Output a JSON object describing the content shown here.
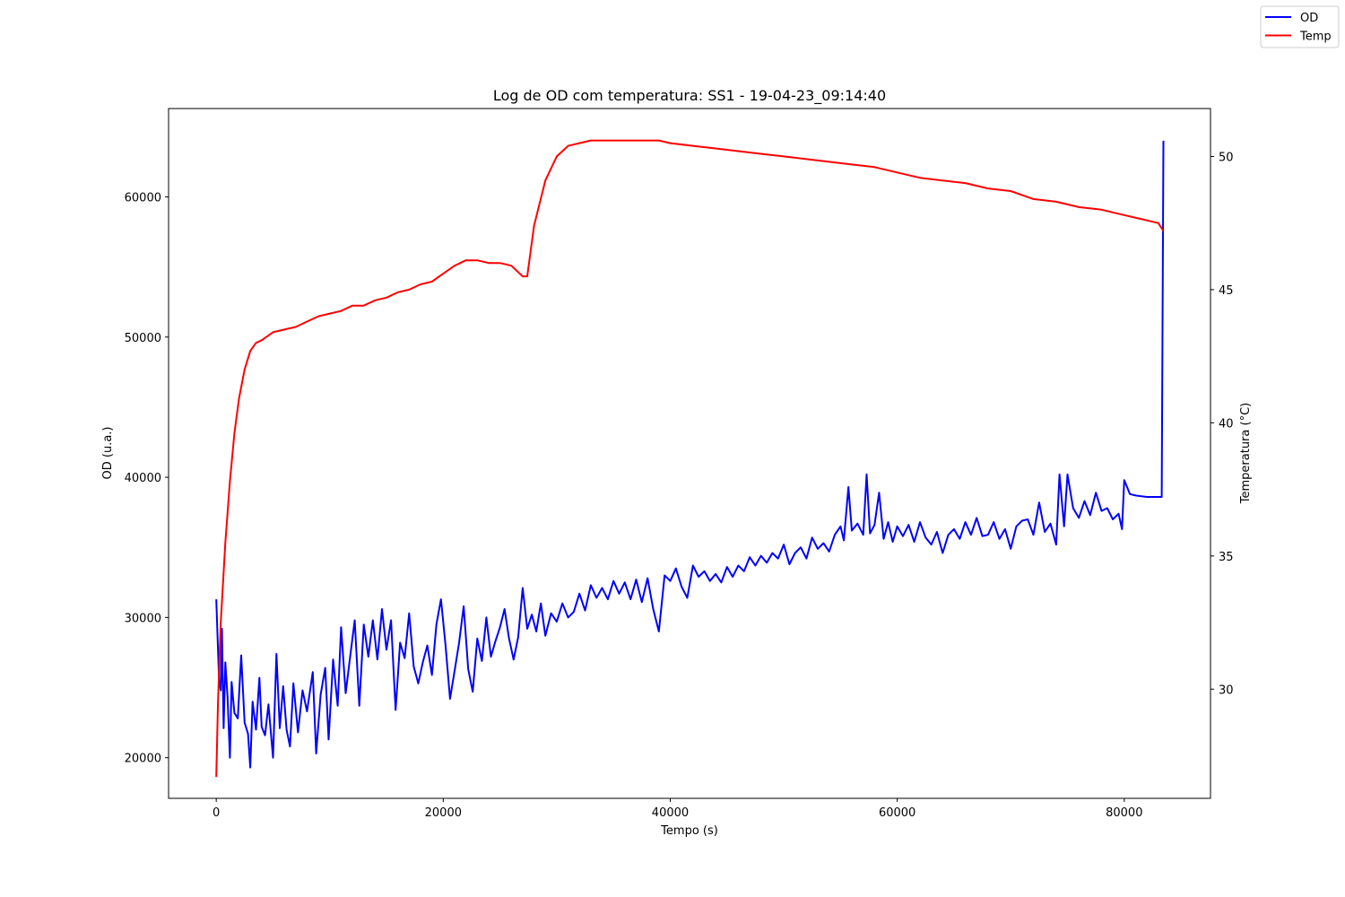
{
  "chart_data": {
    "type": "line",
    "title": "Log de OD com temperatura: SS1 - 19-04-23_09:14:40",
    "xlabel": "Tempo (s)",
    "ylabel": "OD (u.a.)",
    "ylabel_right": "Temperatura (°C)",
    "xlim": [
      -4200,
      87600
    ],
    "ylim": [
      17100,
      66300
    ],
    "ylim_right": [
      25.9,
      51.8
    ],
    "x_ticks": [
      0,
      20000,
      40000,
      60000,
      80000
    ],
    "y_ticks": [
      20000,
      30000,
      40000,
      50000,
      60000
    ],
    "y_ticks_right": [
      30,
      35,
      40,
      45,
      50
    ],
    "grid": false,
    "legend": {
      "placement": "top-right (outside axes)",
      "entries": [
        "OD",
        "Temp"
      ]
    },
    "series": [
      {
        "name": "OD",
        "axis": "left",
        "color": "#0000ff",
        "points": [
          [
            0,
            31300
          ],
          [
            250,
            25500
          ],
          [
            400,
            24800
          ],
          [
            500,
            29200
          ],
          [
            650,
            22100
          ],
          [
            800,
            26800
          ],
          [
            1000,
            24300
          ],
          [
            1200,
            20000
          ],
          [
            1350,
            25400
          ],
          [
            1600,
            23200
          ],
          [
            1900,
            22800
          ],
          [
            2200,
            27300
          ],
          [
            2500,
            22500
          ],
          [
            2800,
            21700
          ],
          [
            3000,
            19300
          ],
          [
            3200,
            24000
          ],
          [
            3500,
            22000
          ],
          [
            3800,
            25700
          ],
          [
            4000,
            22200
          ],
          [
            4300,
            21600
          ],
          [
            4600,
            23800
          ],
          [
            5000,
            20000
          ],
          [
            5300,
            27400
          ],
          [
            5600,
            22100
          ],
          [
            5900,
            25100
          ],
          [
            6200,
            22000
          ],
          [
            6500,
            20800
          ],
          [
            6800,
            25300
          ],
          [
            7200,
            21800
          ],
          [
            7600,
            24800
          ],
          [
            8000,
            23300
          ],
          [
            8500,
            26100
          ],
          [
            8800,
            20300
          ],
          [
            9200,
            24500
          ],
          [
            9600,
            26400
          ],
          [
            9900,
            21300
          ],
          [
            10300,
            27000
          ],
          [
            10700,
            23700
          ],
          [
            11000,
            29300
          ],
          [
            11400,
            24600
          ],
          [
            11800,
            27200
          ],
          [
            12200,
            29800
          ],
          [
            12600,
            23700
          ],
          [
            13000,
            29500
          ],
          [
            13400,
            27200
          ],
          [
            13800,
            29800
          ],
          [
            14200,
            27000
          ],
          [
            14600,
            30600
          ],
          [
            15000,
            27700
          ],
          [
            15400,
            29800
          ],
          [
            15800,
            23400
          ],
          [
            16200,
            28200
          ],
          [
            16600,
            27100
          ],
          [
            17000,
            30300
          ],
          [
            17400,
            26500
          ],
          [
            17800,
            25300
          ],
          [
            18200,
            26800
          ],
          [
            18600,
            28000
          ],
          [
            19000,
            25900
          ],
          [
            19400,
            29500
          ],
          [
            19800,
            31300
          ],
          [
            20200,
            28000
          ],
          [
            20600,
            24200
          ],
          [
            21000,
            26200
          ],
          [
            21400,
            28200
          ],
          [
            21800,
            30800
          ],
          [
            22200,
            26300
          ],
          [
            22600,
            24700
          ],
          [
            23000,
            28500
          ],
          [
            23400,
            26900
          ],
          [
            23800,
            30000
          ],
          [
            24200,
            27200
          ],
          [
            24600,
            28300
          ],
          [
            25000,
            29300
          ],
          [
            25400,
            30600
          ],
          [
            25800,
            28500
          ],
          [
            26200,
            27000
          ],
          [
            26600,
            28600
          ],
          [
            27000,
            32100
          ],
          [
            27400,
            29200
          ],
          [
            27800,
            30200
          ],
          [
            28200,
            29000
          ],
          [
            28600,
            31000
          ],
          [
            29000,
            28700
          ],
          [
            29500,
            30300
          ],
          [
            30000,
            29700
          ],
          [
            30500,
            31000
          ],
          [
            31000,
            30000
          ],
          [
            31500,
            30400
          ],
          [
            32000,
            31700
          ],
          [
            32500,
            30500
          ],
          [
            33000,
            32300
          ],
          [
            33500,
            31400
          ],
          [
            34000,
            32100
          ],
          [
            34500,
            31300
          ],
          [
            35000,
            32600
          ],
          [
            35500,
            31700
          ],
          [
            36000,
            32500
          ],
          [
            36500,
            31300
          ],
          [
            37000,
            32700
          ],
          [
            37500,
            31100
          ],
          [
            38000,
            32800
          ],
          [
            38500,
            30600
          ],
          [
            39000,
            29000
          ],
          [
            39500,
            33000
          ],
          [
            40000,
            32600
          ],
          [
            40500,
            33500
          ],
          [
            41000,
            32200
          ],
          [
            41500,
            31400
          ],
          [
            42000,
            33700
          ],
          [
            42500,
            32900
          ],
          [
            43000,
            33300
          ],
          [
            43500,
            32600
          ],
          [
            44000,
            33100
          ],
          [
            44500,
            32500
          ],
          [
            45000,
            33600
          ],
          [
            45500,
            32900
          ],
          [
            46000,
            33700
          ],
          [
            46500,
            33300
          ],
          [
            47000,
            34300
          ],
          [
            47500,
            33700
          ],
          [
            48000,
            34400
          ],
          [
            48500,
            33900
          ],
          [
            49000,
            34600
          ],
          [
            49500,
            34200
          ],
          [
            50000,
            35200
          ],
          [
            50500,
            33800
          ],
          [
            51000,
            34600
          ],
          [
            51500,
            35000
          ],
          [
            52000,
            34200
          ],
          [
            52500,
            35700
          ],
          [
            53000,
            34900
          ],
          [
            53500,
            35300
          ],
          [
            54000,
            34700
          ],
          [
            54500,
            35900
          ],
          [
            55000,
            36500
          ],
          [
            55300,
            35500
          ],
          [
            55700,
            39300
          ],
          [
            56000,
            36200
          ],
          [
            56500,
            36700
          ],
          [
            57000,
            35900
          ],
          [
            57300,
            40200
          ],
          [
            57600,
            36000
          ],
          [
            58000,
            36600
          ],
          [
            58400,
            38900
          ],
          [
            58800,
            35600
          ],
          [
            59200,
            36800
          ],
          [
            59600,
            35400
          ],
          [
            60000,
            36500
          ],
          [
            60500,
            35800
          ],
          [
            61000,
            36600
          ],
          [
            61500,
            35400
          ],
          [
            62000,
            36800
          ],
          [
            62500,
            35700
          ],
          [
            63000,
            35200
          ],
          [
            63500,
            36100
          ],
          [
            64000,
            34600
          ],
          [
            64500,
            35900
          ],
          [
            65000,
            36300
          ],
          [
            65500,
            35600
          ],
          [
            66000,
            36800
          ],
          [
            66500,
            35900
          ],
          [
            67000,
            37100
          ],
          [
            67500,
            35800
          ],
          [
            68000,
            35900
          ],
          [
            68500,
            36800
          ],
          [
            69000,
            35600
          ],
          [
            69500,
            36300
          ],
          [
            70000,
            34900
          ],
          [
            70500,
            36500
          ],
          [
            71000,
            36900
          ],
          [
            71500,
            37000
          ],
          [
            72000,
            35900
          ],
          [
            72500,
            38200
          ],
          [
            73000,
            36100
          ],
          [
            73500,
            36700
          ],
          [
            74000,
            35200
          ],
          [
            74300,
            40200
          ],
          [
            74700,
            36500
          ],
          [
            75000,
            40200
          ],
          [
            75500,
            37800
          ],
          [
            76000,
            37100
          ],
          [
            76500,
            38300
          ],
          [
            77000,
            37300
          ],
          [
            77500,
            38900
          ],
          [
            78000,
            37600
          ],
          [
            78500,
            37800
          ],
          [
            79000,
            37000
          ],
          [
            79500,
            37400
          ],
          [
            79800,
            36300
          ],
          [
            80000,
            39800
          ],
          [
            80500,
            38800
          ],
          [
            81000,
            38700
          ],
          [
            82000,
            38600
          ],
          [
            83000,
            38600
          ],
          [
            83300,
            38600
          ],
          [
            83450,
            64000
          ]
        ]
      },
      {
        "name": "Temp",
        "axis": "right",
        "color": "#ff0000",
        "points": [
          [
            0,
            26.7
          ],
          [
            150,
            29.5
          ],
          [
            400,
            32.5
          ],
          [
            800,
            35.5
          ],
          [
            1200,
            37.8
          ],
          [
            1600,
            39.6
          ],
          [
            2000,
            40.9
          ],
          [
            2500,
            42.0
          ],
          [
            3000,
            42.7
          ],
          [
            3500,
            43.0
          ],
          [
            4000,
            43.1
          ],
          [
            5000,
            43.4
          ],
          [
            6000,
            43.5
          ],
          [
            7000,
            43.6
          ],
          [
            8000,
            43.8
          ],
          [
            9000,
            44.0
          ],
          [
            10000,
            44.1
          ],
          [
            11000,
            44.2
          ],
          [
            12000,
            44.4
          ],
          [
            13000,
            44.4
          ],
          [
            14000,
            44.6
          ],
          [
            15000,
            44.7
          ],
          [
            16000,
            44.9
          ],
          [
            17000,
            45.0
          ],
          [
            18000,
            45.2
          ],
          [
            19000,
            45.3
          ],
          [
            20000,
            45.6
          ],
          [
            21000,
            45.9
          ],
          [
            22000,
            46.1
          ],
          [
            23000,
            46.1
          ],
          [
            24000,
            46.0
          ],
          [
            25000,
            46.0
          ],
          [
            26000,
            45.9
          ],
          [
            27000,
            45.5
          ],
          [
            27400,
            45.5
          ],
          [
            28000,
            47.4
          ],
          [
            29000,
            49.1
          ],
          [
            30000,
            50.0
          ],
          [
            31000,
            50.4
          ],
          [
            32000,
            50.5
          ],
          [
            33000,
            50.6
          ],
          [
            34000,
            50.6
          ],
          [
            35000,
            50.6
          ],
          [
            36000,
            50.6
          ],
          [
            37000,
            50.6
          ],
          [
            38000,
            50.6
          ],
          [
            39000,
            50.6
          ],
          [
            40000,
            50.5
          ],
          [
            42000,
            50.4
          ],
          [
            44000,
            50.3
          ],
          [
            46000,
            50.2
          ],
          [
            48000,
            50.1
          ],
          [
            50000,
            50.0
          ],
          [
            52000,
            49.9
          ],
          [
            54000,
            49.8
          ],
          [
            56000,
            49.7
          ],
          [
            58000,
            49.6
          ],
          [
            60000,
            49.4
          ],
          [
            62000,
            49.2
          ],
          [
            64000,
            49.1
          ],
          [
            66000,
            49.0
          ],
          [
            68000,
            48.8
          ],
          [
            70000,
            48.7
          ],
          [
            72000,
            48.4
          ],
          [
            74000,
            48.3
          ],
          [
            76000,
            48.1
          ],
          [
            78000,
            48.0
          ],
          [
            80000,
            47.8
          ],
          [
            82000,
            47.6
          ],
          [
            83000,
            47.5
          ],
          [
            83450,
            47.2
          ]
        ]
      }
    ]
  }
}
